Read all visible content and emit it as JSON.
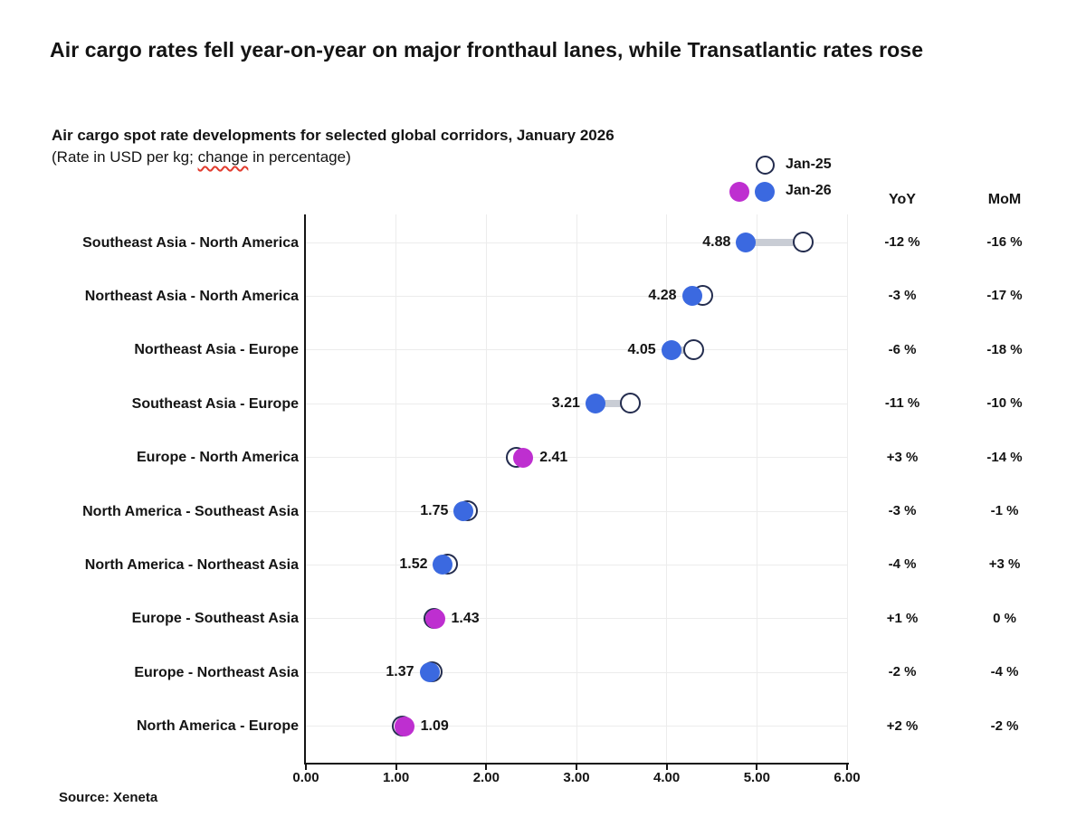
{
  "page": {
    "title": "Air cargo rates fell year-on-year on major fronthaul lanes, while Transatlantic rates rose",
    "subtitle": "Air cargo spot rate developments for selected global corridors, January 2026",
    "subtitle_note_prefix": "(Rate in USD per kg; ",
    "subtitle_note_word": "change",
    "subtitle_note_suffix": " in percentage)",
    "source": "Source: Xeneta"
  },
  "legend": {
    "jan25_label": "Jan-25",
    "jan26_label": "Jan-26"
  },
  "columns": {
    "yoy": "YoY",
    "mom": "MoM"
  },
  "chart_data": {
    "type": "dumbbell",
    "title": "Air cargo spot rate developments for selected global corridors, January 2026",
    "unit_note": "Rate in USD per kg; change in percentage",
    "series": [
      "Jan-25",
      "Jan-26"
    ],
    "x_axis": {
      "min": 0,
      "max": 6,
      "tick_values": [
        0,
        1,
        2,
        3,
        4,
        5,
        6
      ],
      "ticks": [
        "0.00",
        "1.00",
        "2.00",
        "3.00",
        "4.00",
        "5.00",
        "6.00"
      ]
    },
    "legend_position": "top-right",
    "grid": true,
    "rows": [
      {
        "corridor": "Southeast Asia - North America",
        "jan26": 4.88,
        "jan26_label": "4.88",
        "jan25": 5.52,
        "yoy": "-12 %",
        "mom": "-16 %",
        "dot_color": "blue",
        "value_side": "left"
      },
      {
        "corridor": "Northeast Asia - North America",
        "jan26": 4.28,
        "jan26_label": "4.28",
        "jan25": 4.4,
        "yoy": "-3 %",
        "mom": "-17 %",
        "dot_color": "blue",
        "value_side": "left"
      },
      {
        "corridor": "Northeast Asia - Europe",
        "jan26": 4.05,
        "jan26_label": "4.05",
        "jan25": 4.3,
        "yoy": "-6 %",
        "mom": "-18 %",
        "dot_color": "blue",
        "value_side": "left"
      },
      {
        "corridor": "Southeast Asia - Europe",
        "jan26": 3.21,
        "jan26_label": "3.21",
        "jan25": 3.6,
        "yoy": "-11 %",
        "mom": "-10 %",
        "dot_color": "blue",
        "value_side": "left"
      },
      {
        "corridor": "Europe - North America",
        "jan26": 2.41,
        "jan26_label": "2.41",
        "jan25": 2.34,
        "yoy": "+3 %",
        "mom": "-14 %",
        "dot_color": "magenta",
        "value_side": "right"
      },
      {
        "corridor": "North America - Southeast Asia",
        "jan26": 1.75,
        "jan26_label": "1.75",
        "jan25": 1.8,
        "yoy": "-3 %",
        "mom": "-1 %",
        "dot_color": "blue",
        "value_side": "left"
      },
      {
        "corridor": "North America - Northeast Asia",
        "jan26": 1.52,
        "jan26_label": "1.52",
        "jan25": 1.58,
        "yoy": "-4 %",
        "mom": "+3 %",
        "dot_color": "blue",
        "value_side": "left"
      },
      {
        "corridor": "Europe - Southeast Asia",
        "jan26": 1.43,
        "jan26_label": "1.43",
        "jan25": 1.42,
        "yoy": "+1 %",
        "mom": "0 %",
        "dot_color": "magenta",
        "value_side": "right"
      },
      {
        "corridor": "Europe - Northeast Asia",
        "jan26": 1.37,
        "jan26_label": "1.37",
        "jan25": 1.4,
        "yoy": "-2 %",
        "mom": "-4 %",
        "dot_color": "blue",
        "value_side": "left"
      },
      {
        "corridor": "North America - Europe",
        "jan26": 1.09,
        "jan26_label": "1.09",
        "jan25": 1.07,
        "yoy": "+2 %",
        "mom": "-2 %",
        "dot_color": "magenta",
        "value_side": "right"
      }
    ]
  },
  "colors": {
    "jan26_blue": "#3B69E0",
    "jan26_magenta": "#BE2FD0",
    "jan25_ring": "#232C4E",
    "connector": "#C9CDD5",
    "grid": "#ECECEC",
    "axis": "#141414",
    "text": "#141414",
    "squiggle": "#E23B2E"
  }
}
